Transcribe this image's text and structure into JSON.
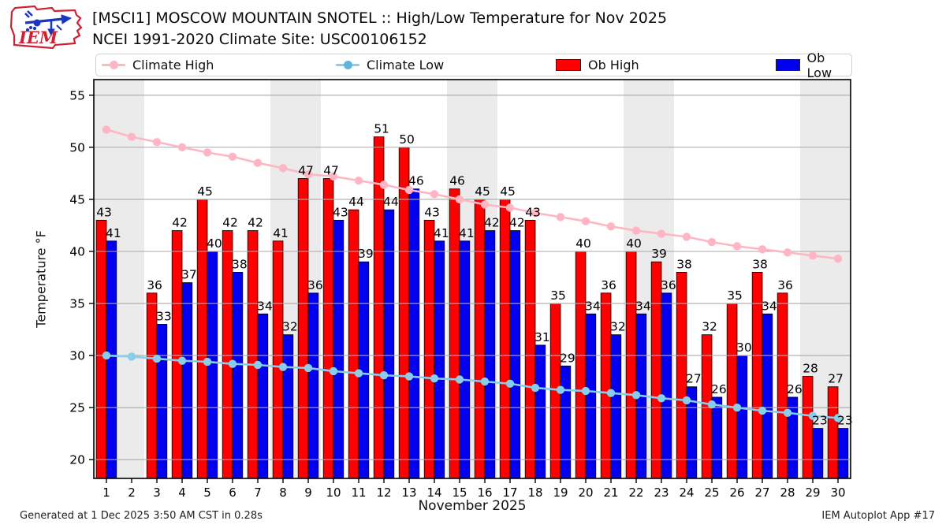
{
  "header": {
    "title_line1": "[MSCI1] MOSCOW MOUNTAIN SNOTEL :: High/Low Temperature for Nov 2025",
    "title_line2": "NCEI 1991-2020 Climate Site: USC00106152",
    "logo_text": "IEM"
  },
  "legend": {
    "items": [
      {
        "label": "Climate High",
        "type": "line",
        "color": "#ffb6c4"
      },
      {
        "label": "Climate Low",
        "type": "line",
        "color": "#87ceeb"
      },
      {
        "label": "Ob High",
        "type": "patch",
        "color": "#ff0000"
      },
      {
        "label": "Ob Low",
        "type": "patch",
        "color": "#0000ee"
      }
    ]
  },
  "chart_data": {
    "type": "bar",
    "title": "[MSCI1] MOSCOW MOUNTAIN SNOTEL :: High/Low Temperature for Nov 2025",
    "subtitle": "NCEI 1991-2020 Climate Site: USC00106152",
    "xlabel": "November 2025",
    "ylabel": "Temperature °F",
    "x": [
      1,
      2,
      3,
      4,
      5,
      6,
      7,
      8,
      9,
      10,
      11,
      12,
      13,
      14,
      15,
      16,
      17,
      18,
      19,
      20,
      21,
      22,
      23,
      24,
      25,
      26,
      27,
      28,
      29,
      30
    ],
    "series": [
      {
        "name": "Climate High",
        "type": "line",
        "color": "#ffb6c4",
        "values": [
          51.7,
          51.0,
          50.5,
          50.0,
          49.5,
          49.1,
          48.5,
          48.0,
          47.4,
          47.2,
          46.8,
          46.4,
          45.9,
          45.5,
          45.0,
          44.5,
          44.2,
          43.7,
          43.3,
          42.9,
          42.4,
          42.0,
          41.7,
          41.4,
          40.9,
          40.5,
          40.2,
          39.9,
          39.6,
          39.3
        ]
      },
      {
        "name": "Climate Low",
        "type": "line",
        "color": "#87ceeb",
        "values": [
          30.0,
          29.9,
          29.7,
          29.5,
          29.4,
          29.2,
          29.1,
          28.9,
          28.8,
          28.5,
          28.3,
          28.1,
          28.0,
          27.8,
          27.7,
          27.5,
          27.3,
          26.9,
          26.7,
          26.6,
          26.4,
          26.2,
          25.9,
          25.7,
          25.3,
          25.0,
          24.7,
          24.5,
          24.2,
          24.0
        ]
      },
      {
        "name": "Ob High",
        "type": "bar",
        "color": "#ff0000",
        "values": [
          43,
          null,
          36,
          42,
          45,
          42,
          42,
          41,
          47,
          47,
          44,
          51,
          50,
          43,
          46,
          45,
          45,
          43,
          35,
          40,
          36,
          40,
          39,
          38,
          32,
          35,
          38,
          36,
          28,
          27
        ]
      },
      {
        "name": "Ob Low",
        "type": "bar",
        "color": "#0000ee",
        "values": [
          41,
          null,
          33,
          37,
          40,
          38,
          34,
          32,
          36,
          43,
          39,
          44,
          46,
          41,
          41,
          42,
          42,
          31,
          29,
          34,
          32,
          34,
          36,
          27,
          26,
          30,
          34,
          26,
          23,
          23
        ]
      }
    ],
    "y_ticks": [
      20,
      25,
      30,
      35,
      40,
      45,
      50,
      55
    ],
    "ylim": [
      18.2,
      56.5
    ],
    "xlim": [
      0.5,
      30.5
    ],
    "weekend_bands": [
      [
        0.5,
        2.5
      ],
      [
        7.5,
        9.5
      ],
      [
        14.5,
        16.5
      ],
      [
        21.5,
        23.5
      ],
      [
        28.5,
        30.5
      ]
    ],
    "grid": "horizontal",
    "legend_position": "top",
    "band_color": "#ebebeb",
    "grid_color": "#aaaaaa"
  },
  "footer": {
    "left": "Generated at 1 Dec 2025 3:50 AM CST in 0.28s",
    "right": "IEM Autoplot App #17"
  }
}
